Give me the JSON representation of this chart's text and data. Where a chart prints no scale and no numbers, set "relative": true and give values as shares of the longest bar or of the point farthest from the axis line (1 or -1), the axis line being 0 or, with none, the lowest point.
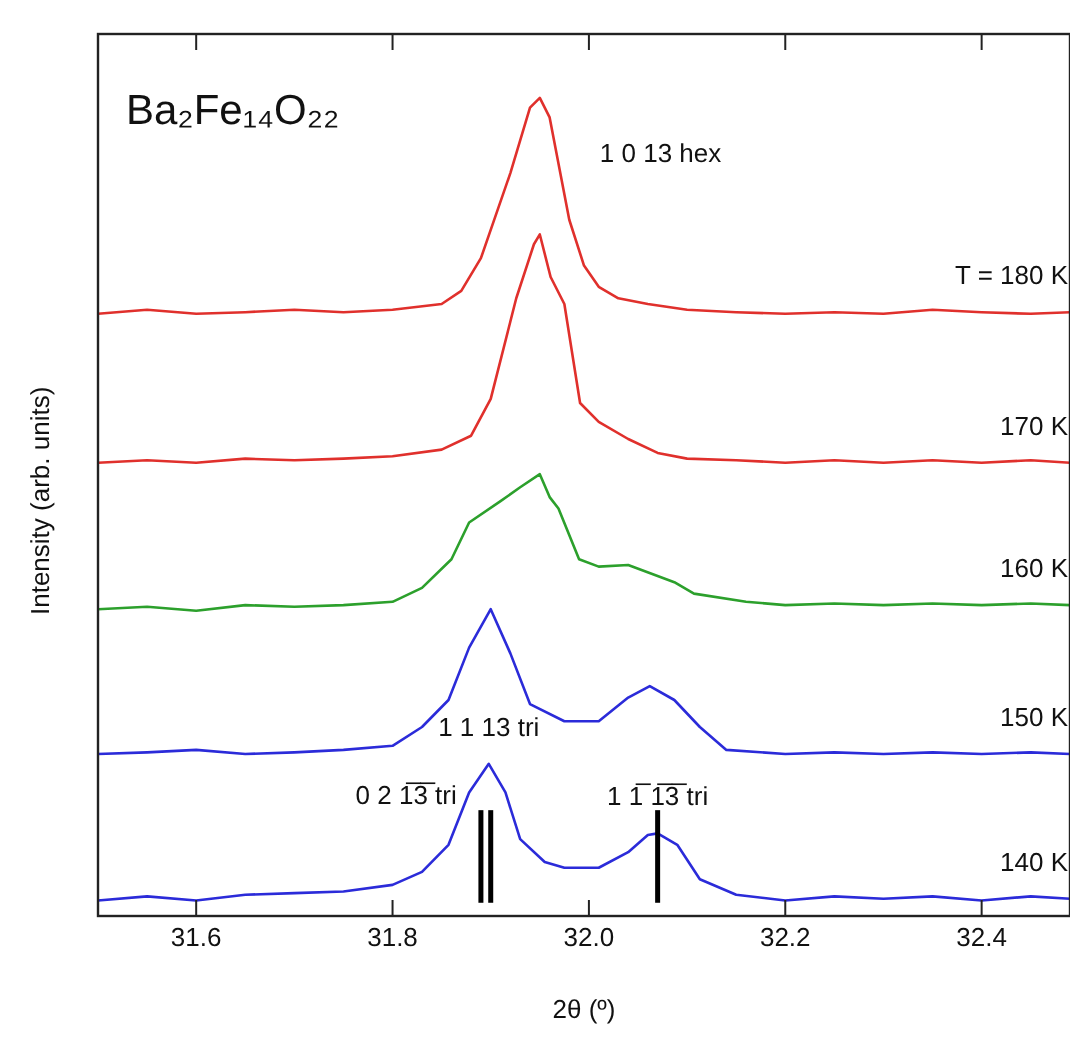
{
  "chart_data": {
    "type": "line",
    "title": "Ba₂Fe₁₄O₂₂",
    "xlabel": "2θ (º)",
    "ylabel": "Intensity (arb. units)",
    "relative": true,
    "xlim": [
      31.5,
      32.49
    ],
    "xticks": [
      31.6,
      31.8,
      {
        "value": 32.0,
        "label": "32.0"
      },
      32.2,
      32.4
    ],
    "grid": false,
    "legend": false,
    "marker": "none",
    "line_style": "solid",
    "series": [
      {
        "name": "T = 180 K",
        "color": "#e0302c",
        "x": [
          31.5,
          31.55,
          31.6,
          31.65,
          31.7,
          31.75,
          31.8,
          31.85,
          31.87,
          31.89,
          31.92,
          31.94,
          31.95,
          31.96,
          31.98,
          31.995,
          32.01,
          32.03,
          32.06,
          32.1,
          32.15,
          32.2,
          32.25,
          32.3,
          32.35,
          32.4,
          32.45,
          32.49
        ],
        "values": [
          0.736,
          0.741,
          0.736,
          0.738,
          0.741,
          0.738,
          0.741,
          0.748,
          0.764,
          0.804,
          0.908,
          0.988,
          1.0,
          0.976,
          0.851,
          0.795,
          0.769,
          0.755,
          0.748,
          0.741,
          0.738,
          0.736,
          0.738,
          0.736,
          0.741,
          0.738,
          0.736,
          0.738
        ]
      },
      {
        "name": "170 K",
        "color": "#e0302c",
        "x": [
          31.5,
          31.55,
          31.6,
          31.65,
          31.7,
          31.75,
          31.8,
          31.85,
          31.88,
          31.9,
          31.926,
          31.944,
          31.95,
          31.961,
          31.975,
          31.991,
          32.01,
          32.04,
          32.07,
          32.1,
          32.15,
          32.2,
          32.25,
          32.3,
          32.35,
          32.4,
          32.45,
          32.49
        ],
        "values": [
          0.554,
          0.557,
          0.554,
          0.559,
          0.557,
          0.559,
          0.562,
          0.57,
          0.587,
          0.632,
          0.755,
          0.821,
          0.833,
          0.781,
          0.748,
          0.627,
          0.604,
          0.583,
          0.566,
          0.559,
          0.557,
          0.554,
          0.557,
          0.554,
          0.557,
          0.554,
          0.557,
          0.554
        ]
      },
      {
        "name": "160 K",
        "color": "#2ca02c",
        "x": [
          31.5,
          31.55,
          31.6,
          31.65,
          31.7,
          31.75,
          31.8,
          31.83,
          31.86,
          31.878,
          31.91,
          31.93,
          31.95,
          31.96,
          31.969,
          31.99,
          32.01,
          32.04,
          32.087,
          32.107,
          32.16,
          32.2,
          32.25,
          32.3,
          32.35,
          32.4,
          32.45,
          32.49
        ],
        "values": [
          0.375,
          0.378,
          0.373,
          0.38,
          0.378,
          0.38,
          0.384,
          0.401,
          0.436,
          0.481,
          0.507,
          0.524,
          0.54,
          0.512,
          0.498,
          0.436,
          0.427,
          0.429,
          0.408,
          0.394,
          0.384,
          0.38,
          0.382,
          0.38,
          0.382,
          0.38,
          0.382,
          0.38
        ]
      },
      {
        "name": "150 K",
        "color": "#2b2bd9",
        "x": [
          31.5,
          31.55,
          31.6,
          31.65,
          31.7,
          31.75,
          31.8,
          31.83,
          31.857,
          31.878,
          31.9,
          31.92,
          31.94,
          31.975,
          32.01,
          32.04,
          32.062,
          32.087,
          32.113,
          32.14,
          32.2,
          32.25,
          32.3,
          32.35,
          32.4,
          32.45,
          32.49
        ],
        "values": [
          0.198,
          0.2,
          0.203,
          0.198,
          0.2,
          0.203,
          0.208,
          0.231,
          0.264,
          0.328,
          0.375,
          0.321,
          0.259,
          0.238,
          0.238,
          0.267,
          0.281,
          0.264,
          0.231,
          0.203,
          0.198,
          0.2,
          0.198,
          0.2,
          0.198,
          0.2,
          0.198
        ]
      },
      {
        "name": "140 K",
        "color": "#2b2bd9",
        "x": [
          31.5,
          31.55,
          31.6,
          31.65,
          31.7,
          31.75,
          31.8,
          31.83,
          31.857,
          31.878,
          31.898,
          31.915,
          31.93,
          31.955,
          31.975,
          32.01,
          32.04,
          32.06,
          32.07,
          32.09,
          32.113,
          32.15,
          32.2,
          32.25,
          32.3,
          32.35,
          32.4,
          32.45,
          32.49
        ],
        "values": [
          0.019,
          0.024,
          0.019,
          0.026,
          0.028,
          0.03,
          0.038,
          0.054,
          0.087,
          0.151,
          0.186,
          0.151,
          0.094,
          0.066,
          0.059,
          0.059,
          0.078,
          0.099,
          0.101,
          0.087,
          0.045,
          0.026,
          0.019,
          0.024,
          0.021,
          0.024,
          0.019,
          0.024,
          0.021
        ]
      }
    ],
    "ref_lines": [
      {
        "axis": "x",
        "value": 31.89,
        "label": null,
        "color": "#000000"
      },
      {
        "axis": "x",
        "value": 31.9,
        "label": null,
        "color": "#000000"
      },
      {
        "axis": "x",
        "value": 32.07,
        "label": null,
        "color": "#000000"
      }
    ],
    "annotations": [
      {
        "text": "1 0 13 hex",
        "x": 31.95,
        "y": 1.0
      },
      {
        "text": "1 1 13 tri",
        "x": 31.898,
        "y": 0.186
      },
      {
        "text": "0 2 1̅3̅ tri",
        "x": 31.898,
        "y": 0.186
      },
      {
        "text": "1 1̅ 1̅3̅ tri",
        "x": 32.07,
        "y": 0.101
      }
    ]
  }
}
